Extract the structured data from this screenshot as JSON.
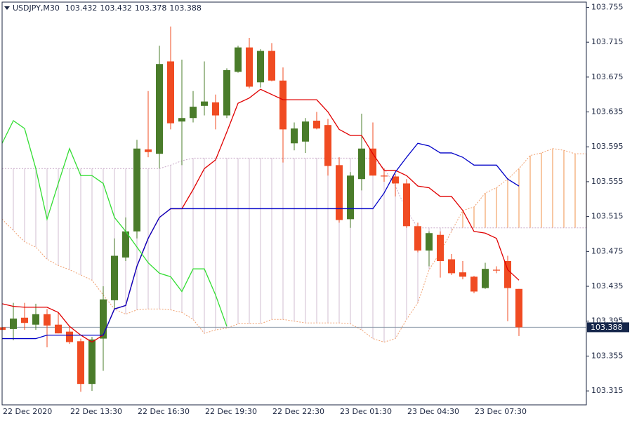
{
  "chart_data": {
    "type": "candlestick",
    "title": "USDJPY,M30",
    "categories": [
      "22 Dec 2020",
      null,
      null,
      null,
      null,
      null,
      "22 Dec 13:30",
      null,
      null,
      null,
      null,
      null,
      "22 Dec 16:30",
      null,
      null,
      null,
      null,
      null,
      "22 Dec 19:30",
      null,
      null,
      null,
      null,
      null,
      "22 Dec 22:30",
      null,
      null,
      null,
      null,
      null,
      "23 Dec 01:30",
      null,
      null,
      null,
      null,
      null,
      "23 Dec 04:30",
      null,
      null,
      null,
      null,
      null,
      "23 Dec 07:30",
      null,
      null,
      null,
      null,
      null,
      null,
      null,
      null,
      null,
      null
    ],
    "open": [
      103.388,
      103.386,
      103.399,
      103.391,
      103.403,
      103.391,
      103.383,
      103.372,
      103.323,
      103.375,
      103.419,
      103.468,
      103.498,
      103.592,
      103.587,
      103.693,
      103.624,
      103.628,
      103.642,
      103.646,
      103.631,
      103.681,
      103.709,
      103.669,
      103.705,
      103.671,
      103.599,
      103.601,
      103.625,
      103.62,
      103.574,
      103.512,
      103.558,
      103.593,
      103.562,
      103.561,
      103.553,
      103.504,
      103.476,
      103.494,
      103.466,
      103.451,
      103.446,
      103.433,
      103.454,
      103.464,
      103.432,
      null,
      null,
      null,
      null,
      null,
      null
    ],
    "high": [
      103.397,
      103.416,
      103.416,
      103.415,
      103.409,
      103.405,
      103.389,
      103.375,
      103.377,
      103.435,
      103.49,
      103.514,
      103.603,
      103.659,
      103.711,
      103.733,
      103.695,
      103.659,
      103.693,
      103.655,
      103.685,
      103.711,
      103.72,
      103.707,
      103.714,
      103.686,
      103.623,
      103.628,
      103.635,
      103.627,
      103.583,
      103.566,
      103.633,
      103.623,
      103.57,
      103.564,
      103.558,
      103.508,
      103.498,
      103.498,
      103.472,
      103.464,
      103.447,
      103.462,
      103.458,
      103.47,
      103.432,
      null,
      null,
      null,
      null,
      null,
      null
    ],
    "low": [
      103.353,
      103.373,
      103.385,
      103.385,
      103.365,
      103.381,
      103.369,
      103.314,
      103.315,
      103.338,
      103.409,
      103.464,
      103.49,
      103.583,
      103.57,
      103.615,
      103.574,
      103.623,
      103.631,
      103.615,
      103.628,
      103.68,
      103.662,
      103.663,
      103.67,
      103.577,
      103.591,
      103.588,
      103.615,
      103.562,
      103.508,
      103.502,
      103.545,
      103.562,
      103.555,
      103.538,
      103.502,
      103.474,
      103.458,
      103.445,
      103.448,
      103.443,
      103.427,
      103.432,
      103.45,
      103.395,
      103.378,
      null,
      null,
      null,
      null,
      null,
      null
    ],
    "close": [
      103.385,
      103.398,
      103.393,
      103.403,
      103.39,
      103.381,
      103.371,
      103.323,
      103.374,
      103.42,
      103.47,
      103.498,
      103.593,
      103.589,
      103.69,
      103.622,
      103.628,
      103.641,
      103.647,
      103.631,
      103.683,
      103.709,
      103.664,
      103.705,
      103.671,
      103.615,
      103.616,
      103.624,
      103.616,
      103.573,
      103.511,
      103.562,
      103.593,
      103.562,
      103.561,
      103.553,
      103.504,
      103.476,
      103.496,
      103.464,
      103.45,
      103.446,
      103.429,
      103.455,
      103.453,
      103.433,
      103.388,
      null,
      null,
      null,
      null,
      null,
      null
    ],
    "up_color": "#4a7c2a",
    "down_color": "#f04b22",
    "lines": [
      {
        "color": "#e00000",
        "values": [
          103.415,
          103.412,
          103.411,
          103.411,
          103.411,
          103.405,
          103.389,
          103.379,
          103.371,
          103.379,
          103.409,
          103.413,
          103.458,
          103.49,
          103.514,
          103.524,
          103.524,
          103.546,
          103.57,
          103.58,
          103.612,
          103.645,
          103.651,
          103.661,
          103.655,
          103.649,
          103.649,
          103.649,
          103.649,
          103.635,
          103.615,
          103.608,
          103.608,
          103.587,
          103.568,
          103.568,
          103.562,
          103.55,
          103.548,
          103.538,
          103.538,
          103.522,
          103.498,
          103.496,
          103.49,
          103.454,
          103.442,
          null,
          null,
          null,
          null,
          null,
          null
        ]
      },
      {
        "color": "#0000c8",
        "values": [
          103.375,
          103.375,
          103.375,
          103.375,
          103.379,
          103.379,
          103.379,
          103.379,
          103.379,
          103.379,
          103.409,
          103.413,
          103.458,
          103.49,
          103.514,
          103.524,
          103.524,
          103.524,
          103.524,
          103.524,
          103.524,
          103.524,
          103.524,
          103.524,
          103.524,
          103.524,
          103.524,
          103.524,
          103.524,
          103.524,
          103.524,
          103.524,
          103.524,
          103.524,
          103.542,
          103.566,
          103.583,
          103.599,
          103.596,
          103.588,
          103.588,
          103.583,
          103.574,
          103.574,
          103.574,
          103.558,
          103.55,
          null,
          null,
          null,
          null,
          null,
          null
        ]
      },
      {
        "color": "#33dd33",
        "values": [
          103.599,
          103.625,
          103.616,
          103.57,
          103.512,
          103.553,
          103.593,
          103.562,
          103.562,
          103.553,
          103.514,
          103.498,
          103.48,
          103.462,
          103.45,
          103.446,
          103.429,
          103.455,
          103.455,
          103.425,
          103.389,
          null,
          null,
          null,
          null,
          null,
          null,
          null,
          null,
          null,
          null,
          null,
          null,
          null,
          null,
          null,
          null,
          null,
          null,
          null,
          null,
          null,
          null,
          null,
          null,
          null,
          null,
          null,
          null,
          null,
          null,
          null,
          null
        ]
      }
    ],
    "cloud": {
      "span_a": {
        "color": "#f0a070",
        "values": [
          103.512,
          103.499,
          103.486,
          103.48,
          103.466,
          103.459,
          103.454,
          103.448,
          103.442,
          103.425,
          103.409,
          103.403,
          103.408,
          103.409,
          103.409,
          103.408,
          103.405,
          103.397,
          103.381,
          103.385,
          103.387,
          103.392,
          103.392,
          103.392,
          103.397,
          103.397,
          103.395,
          103.393,
          103.393,
          103.393,
          103.393,
          103.392,
          103.385,
          103.375,
          103.371,
          103.375,
          103.397,
          103.416,
          103.454,
          103.474,
          103.498,
          103.522,
          103.526,
          103.542,
          103.548,
          103.558,
          103.57,
          103.585,
          103.588,
          103.593,
          103.591,
          103.587,
          103.587
        ]
      },
      "span_b": {
        "color": "#c8a8c8",
        "values": [
          103.57,
          103.57,
          103.57,
          103.57,
          103.57,
          103.57,
          103.57,
          103.57,
          103.57,
          103.57,
          103.57,
          103.57,
          103.57,
          103.57,
          103.57,
          103.574,
          103.579,
          103.582,
          103.582,
          103.582,
          103.582,
          103.582,
          103.582,
          103.582,
          103.582,
          103.582,
          103.582,
          103.582,
          103.582,
          103.582,
          103.582,
          103.582,
          103.582,
          103.582,
          103.57,
          103.55,
          103.522,
          103.502,
          103.502,
          103.502,
          103.502,
          103.502,
          103.502,
          103.502,
          103.502,
          103.502,
          103.502,
          103.502,
          103.502,
          103.502,
          103.502,
          103.502,
          103.502
        ]
      },
      "up_fill": "#f4a468",
      "down_fill": "#d8c8d8"
    },
    "price_line_color": "#8796a6",
    "price_box_color": "#15264a",
    "ylim": [
      103.299,
      103.761
    ],
    "yticks": [
      103.315,
      103.355,
      103.395,
      103.435,
      103.475,
      103.515,
      103.555,
      103.595,
      103.635,
      103.675,
      103.715,
      103.755
    ]
  }
}
